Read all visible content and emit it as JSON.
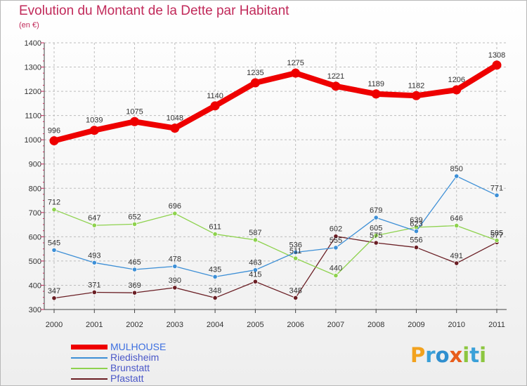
{
  "header": {
    "title": "Evolution du Montant de la Dette par Habitant",
    "unit": "(en €)"
  },
  "logo": {
    "letters": [
      "P",
      "r",
      "o",
      "x",
      "i",
      "t",
      "i"
    ],
    "colors": [
      "#f2a21e",
      "#3aa0d8",
      "#2f8fcf",
      "#e85d1b",
      "#8cc63f",
      "#3aa0d8",
      "#8cc63f"
    ]
  },
  "chart_data": {
    "type": "line",
    "title": "Evolution du Montant de la Dette par Habitant",
    "ylabel": "(en €)",
    "xlabel": "",
    "x": [
      "2000",
      "2001",
      "2002",
      "2003",
      "2004",
      "2005",
      "2006",
      "2007",
      "2008",
      "2009",
      "2010",
      "2011"
    ],
    "ylim": [
      300,
      1400
    ],
    "yticks": [
      "300",
      "400",
      "500",
      "600",
      "700",
      "800",
      "900",
      "1000",
      "1100",
      "1200",
      "1300",
      "1400"
    ],
    "grid": true,
    "legend": "bottom-left",
    "series": [
      {
        "name": "MULHOUSE",
        "color": "#ee0000",
        "values": [
          996,
          1039,
          1075,
          1048,
          1140,
          1235,
          1275,
          1221,
          1189,
          1182,
          1206,
          1308
        ]
      },
      {
        "name": "Riedisheim",
        "color": "#3d8fd6",
        "values": [
          545,
          493,
          465,
          478,
          435,
          463,
          536,
          555,
          679,
          623,
          850,
          771
        ]
      },
      {
        "name": "Brunstatt",
        "color": "#8ed24e",
        "values": [
          712,
          647,
          652,
          696,
          611,
          587,
          511,
          440,
          605,
          639,
          646,
          585
        ]
      },
      {
        "name": "Pfastatt",
        "color": "#6a1e24",
        "values": [
          347,
          371,
          369,
          390,
          348,
          415,
          348,
          602,
          575,
          556,
          491,
          577
        ]
      }
    ]
  }
}
